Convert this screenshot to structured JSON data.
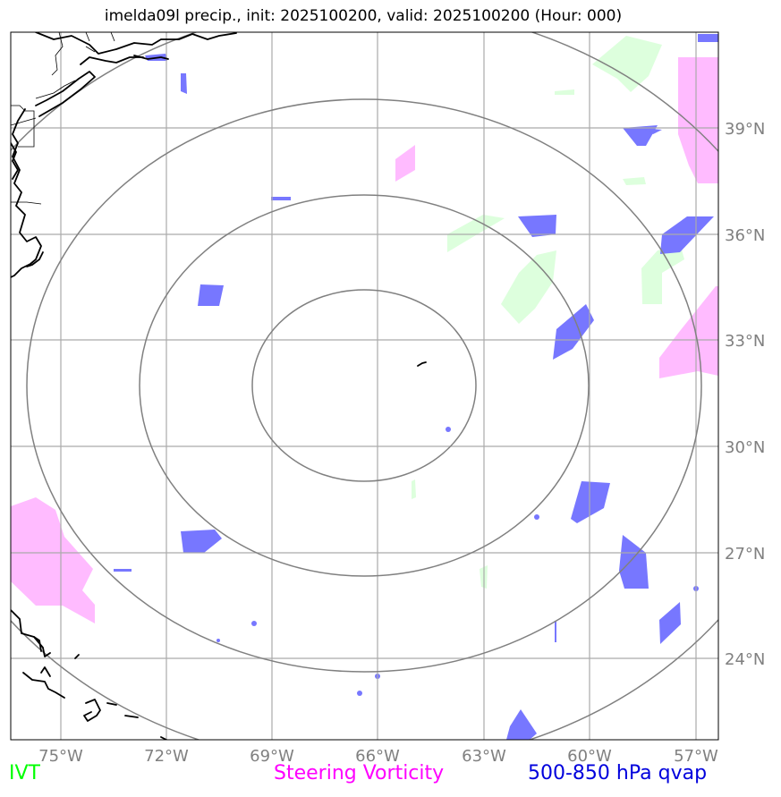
{
  "title": "imelda09l precip., init: 2025100200, valid: 2025100200 (Hour: 000)",
  "map": {
    "lon_ticks": [
      "75°W",
      "72°W",
      "69°W",
      "66°W",
      "63°W",
      "60°W",
      "57°W"
    ],
    "lat_ticks": [
      "39°N",
      "36°N",
      "33°N",
      "30°N",
      "27°N",
      "24°N"
    ],
    "storm_center": {
      "lon": -66.0,
      "lat": 31.9
    },
    "range_rings": 4
  },
  "legend": {
    "ivt": {
      "label": "IVT",
      "color": "#00ff00"
    },
    "vorticity": {
      "label": "Steering Vorticity",
      "color": "#ff00ff"
    },
    "qvap": {
      "label": "500-850 hPa qvap",
      "color": "#0000dd"
    }
  },
  "colors": {
    "ivt_fill": "#ddffdd",
    "vort_fill": "#ffbbff",
    "qvap_fill": "#7777ff",
    "grid": "#aaaaaa",
    "rings": "#808080",
    "coast": "#000000"
  }
}
